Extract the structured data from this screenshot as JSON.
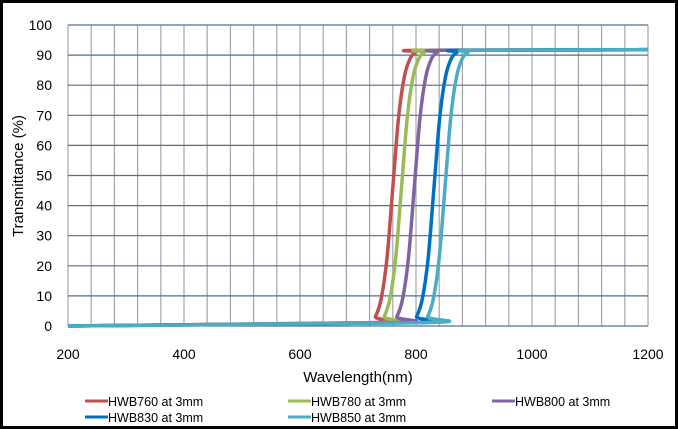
{
  "chart_data": {
    "type": "line",
    "title": "",
    "xlabel": "Wavelength(nm)",
    "ylabel": "Transmittance (%)",
    "xlim": [
      200,
      1200
    ],
    "ylim": [
      0,
      100
    ],
    "x_ticks": [
      200,
      400,
      600,
      800,
      1000,
      1200
    ],
    "y_ticks": [
      0,
      10,
      20,
      30,
      40,
      50,
      60,
      70,
      80,
      90,
      100
    ],
    "x_minor_grid_step": 40,
    "grid": true,
    "legend_position": "bottom",
    "series": [
      {
        "name": "HWB760 at 3mm",
        "color": "#C0504D",
        "x": [
          200,
          720,
          730,
          740,
          750,
          760,
          770,
          780,
          790,
          800,
          810,
          1200
        ],
        "y": [
          0,
          1.1,
          3.1,
          9.1,
          22.6,
          46,
          69.4,
          82.9,
          88.9,
          91.0,
          91.6,
          91.8
        ]
      },
      {
        "name": "HWB780 at 3mm",
        "color": "#9BBB59",
        "x": [
          200,
          735,
          745,
          755,
          765,
          775,
          785,
          795,
          805,
          815,
          825,
          1200
        ],
        "y": [
          0,
          1.1,
          3.1,
          9.1,
          22.6,
          46,
          69.4,
          82.9,
          88.9,
          91.0,
          91.6,
          91.8
        ]
      },
      {
        "name": "HWB800 at 3mm",
        "color": "#8064A2",
        "x": [
          200,
          757,
          767,
          777,
          787,
          797,
          807,
          817,
          827,
          837,
          847,
          1200
        ],
        "y": [
          0,
          1.1,
          3.1,
          9.1,
          22.6,
          46,
          69.4,
          82.9,
          88.9,
          91.0,
          91.6,
          91.8
        ]
      },
      {
        "name": "HWB830 at 3mm",
        "color": "#0070C0",
        "x": [
          200,
          791,
          801,
          811,
          821,
          831,
          841,
          851,
          861,
          871,
          881,
          1200
        ],
        "y": [
          0,
          1.1,
          3.1,
          9.1,
          22.6,
          46,
          69.4,
          82.9,
          88.9,
          91.0,
          91.6,
          91.8
        ]
      },
      {
        "name": "HWB850 at 3mm",
        "color": "#4BACC6",
        "x": [
          200,
          810,
          820,
          830,
          840,
          850,
          860,
          870,
          880,
          890,
          900,
          1200
        ],
        "y": [
          0,
          1.1,
          3.1,
          9.1,
          22.6,
          46,
          69.4,
          82.9,
          88.9,
          91.0,
          91.6,
          91.8
        ]
      }
    ]
  }
}
